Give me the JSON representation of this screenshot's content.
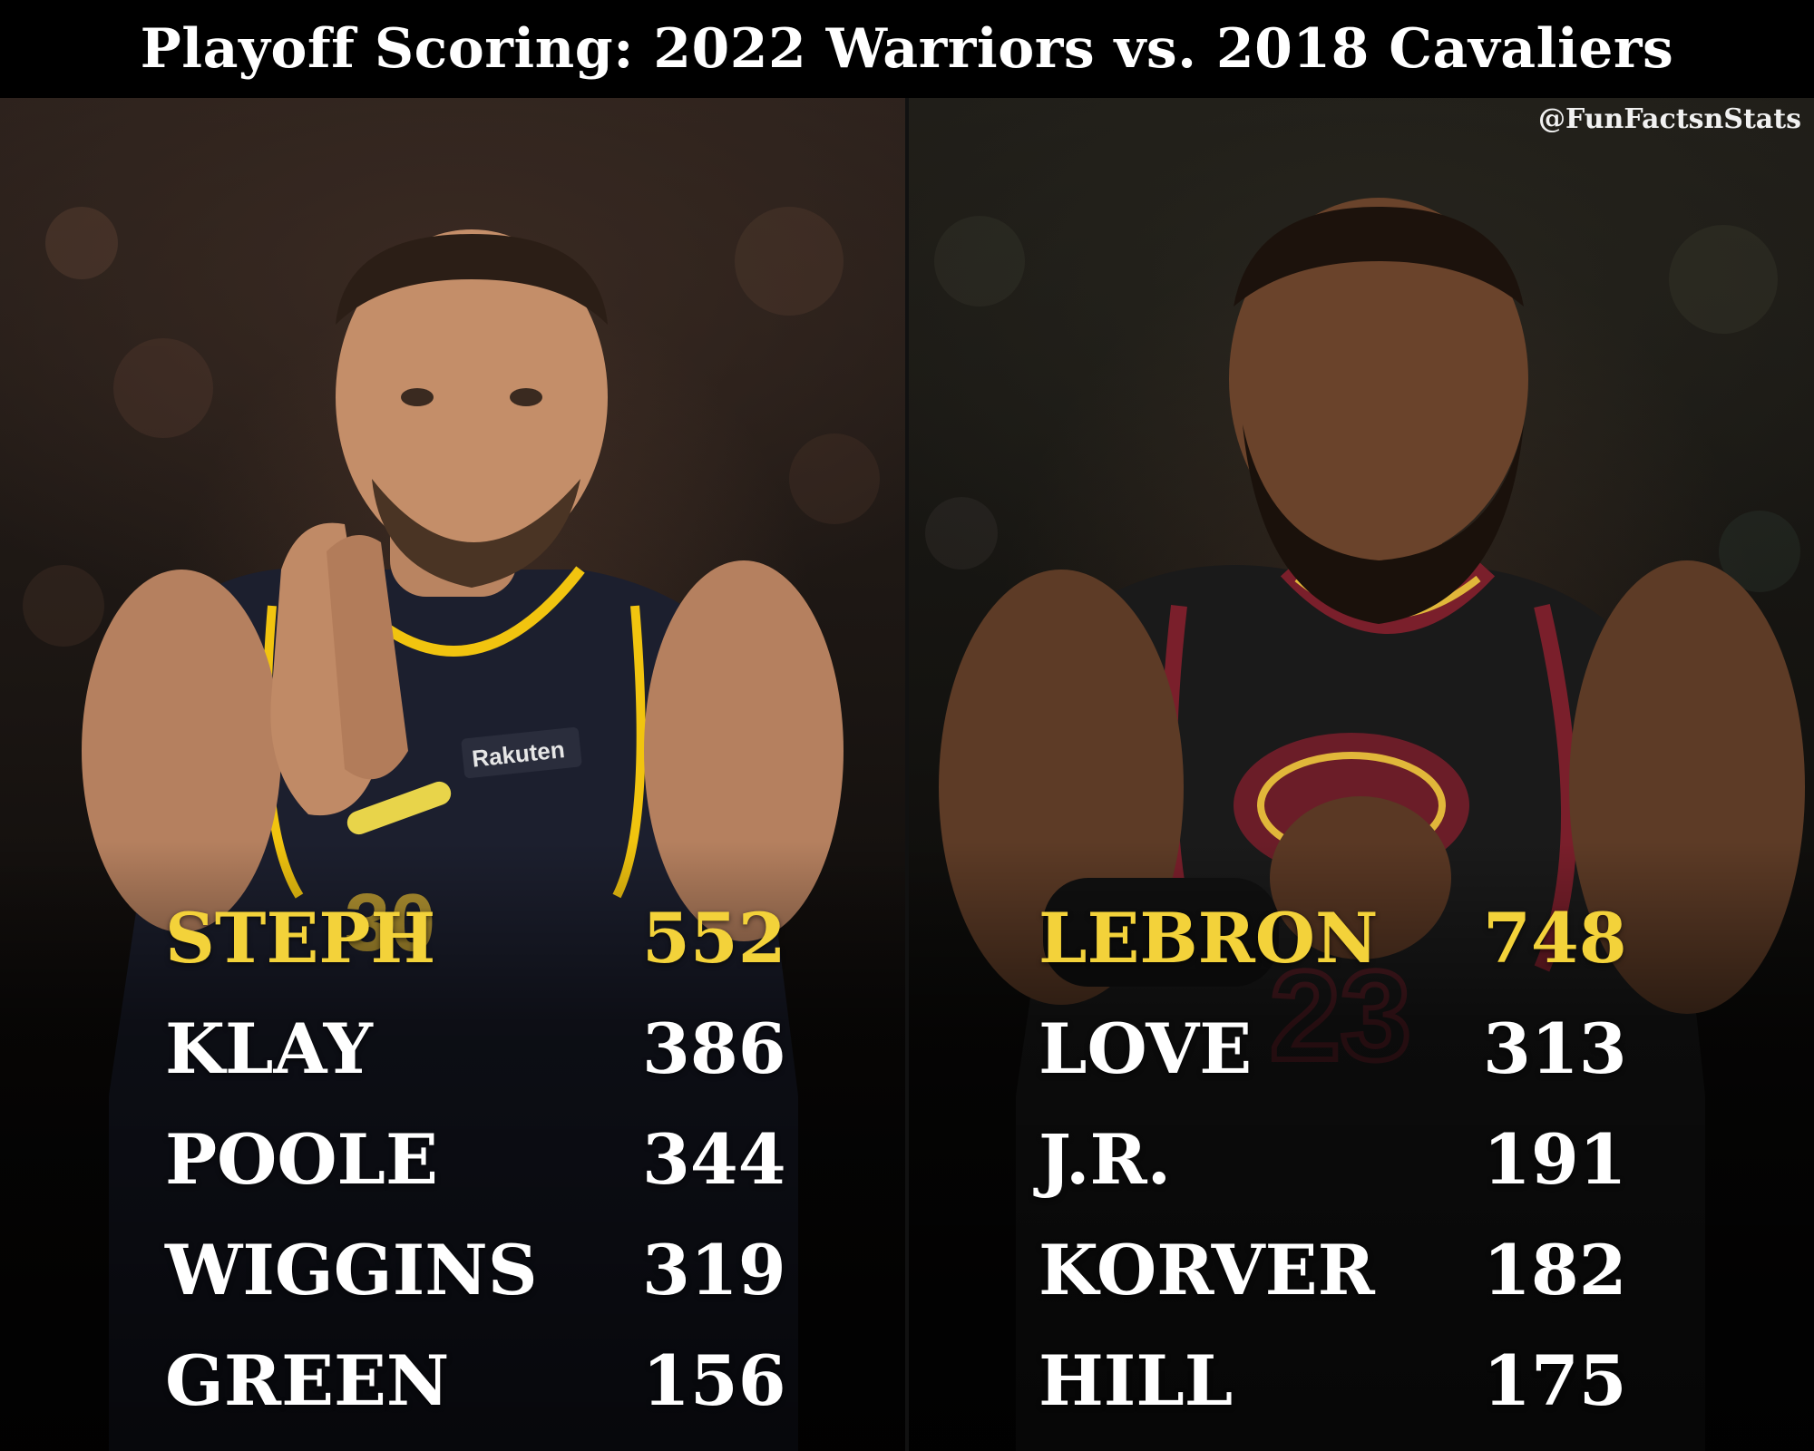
{
  "title": "Playoff Scoring: 2022 Warriors vs. 2018 Cavaliers",
  "watermark": "@FunFactsnStats",
  "left_panel": {
    "photo_subject": "warriors-player-photo",
    "jersey_sponsor": "Rakuten",
    "jersey_number": "30",
    "players": [
      {
        "name": "STEPH",
        "points": "552"
      },
      {
        "name": "KLAY",
        "points": "386"
      },
      {
        "name": "POOLE",
        "points": "344"
      },
      {
        "name": "WIGGINS",
        "points": "319"
      },
      {
        "name": "GREEN",
        "points": "156"
      }
    ]
  },
  "right_panel": {
    "photo_subject": "cavaliers-player-photo",
    "jersey_number": "23",
    "players": [
      {
        "name": "LEBRON",
        "points": "748"
      },
      {
        "name": "LOVE",
        "points": "313"
      },
      {
        "name": "J.R.",
        "points": "191"
      },
      {
        "name": "KORVER",
        "points": "182"
      },
      {
        "name": "HILL",
        "points": "175"
      }
    ]
  },
  "colors": {
    "highlight": "#f3d23a",
    "text": "#ffffff",
    "title_bg": "#000000",
    "warriors_jersey": "#1c1f2e",
    "warriors_trim": "#f1c40f",
    "cavs_jersey": "#1a1a1a",
    "cavs_trim": "#7a1f2b"
  }
}
